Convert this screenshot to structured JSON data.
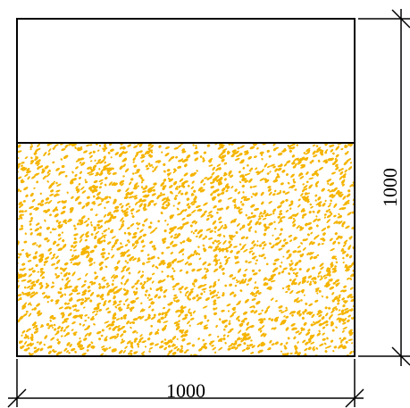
{
  "dimensions": {
    "width_label": "1000",
    "height_label": "1000"
  },
  "colors": {
    "outline": "#000000",
    "fill_pattern": "#f5b400",
    "background": "#ffffff"
  },
  "diagram": {
    "container_width_mm": 1000,
    "container_height_mm": 1000,
    "fill_fraction": 0.63
  }
}
